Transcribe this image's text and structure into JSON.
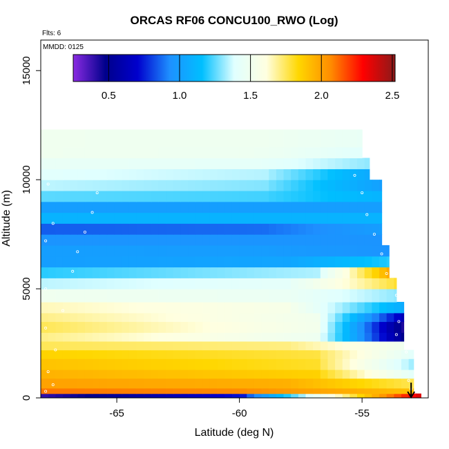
{
  "chart_data": {
    "type": "heatmap",
    "title": "ORCAS RF06 CONCU100_RWO (Log)",
    "flights_label": "Flts: 6",
    "date_label": "MMDD: 0125",
    "xlabel": "Latitude (deg N)",
    "ylabel": "Altitude (m)",
    "xlim": [
      -68.1,
      -52.3
    ],
    "ylim": [
      0,
      16400
    ],
    "x_ticks": [
      -65,
      -60,
      -55
    ],
    "x_tick_labels": [
      "-65",
      "-60",
      "-55"
    ],
    "y_ticks": [
      0,
      5000,
      10000,
      15000
    ],
    "y_tick_labels": [
      "0",
      "5000",
      "10000",
      "15000"
    ],
    "colorbar": {
      "range": [
        0.25,
        2.52
      ],
      "ticks": [
        0.5,
        1.0,
        1.5,
        2.0,
        2.5
      ],
      "tick_labels": [
        "0.5",
        "1.0",
        "1.5",
        "2.0",
        "2.5"
      ],
      "colors": [
        "#8a2be2",
        "#00008b",
        "#0000cd",
        "#1e90ff",
        "#00bfff",
        "#e0ffff",
        "#ffffe0",
        "#ffd700",
        "#ff8c00",
        "#ff0000",
        "#8b1a1a"
      ]
    },
    "layers": [
      {
        "alt": [
          0,
          200
        ],
        "left": 0.4,
        "right": 2.4,
        "mid": -60
      },
      {
        "alt": [
          200,
          450
        ],
        "left": 2.1,
        "right": 1.9,
        "mid": -60
      },
      {
        "alt": [
          450,
          900
        ],
        "left": 2.0,
        "right": 1.75,
        "mid": -58
      },
      {
        "alt": [
          900,
          1300
        ],
        "left": 1.95,
        "right": 1.4,
        "mid": -57
      },
      {
        "alt": [
          1300,
          1800
        ],
        "left": 1.9,
        "right": 1.3,
        "mid": -57
      },
      {
        "alt": [
          1800,
          2200
        ],
        "left": 1.85,
        "right": 1.4,
        "mid": -57
      },
      {
        "alt": [
          2200,
          2600
        ],
        "left": 1.75,
        "right": 1.5,
        "mid": -58
      },
      {
        "alt": [
          2600,
          3000
        ],
        "left": 1.7,
        "right": 0.45,
        "mid": -57
      },
      {
        "alt": [
          3000,
          3500
        ],
        "left": 1.75,
        "right": 0.4,
        "mid": -57
      },
      {
        "alt": [
          3500,
          3900
        ],
        "left": 1.7,
        "right": 0.6,
        "mid": -57
      },
      {
        "alt": [
          3900,
          4400
        ],
        "left": 1.65,
        "right": 1.05,
        "mid": -58
      },
      {
        "alt": [
          4400,
          5000
        ],
        "left": 1.5,
        "right": 1.3,
        "mid": -58
      },
      {
        "alt": [
          5000,
          5500
        ],
        "left": 1.35,
        "right": 1.8,
        "mid": -58
      },
      {
        "alt": [
          5500,
          6000
        ],
        "left": 1.2,
        "right": 2.0,
        "mid": -57
      },
      {
        "alt": [
          6000,
          6500
        ],
        "left": 1.0,
        "right": 1.2,
        "mid": -58
      },
      {
        "alt": [
          6500,
          7000
        ],
        "left": 1.0,
        "right": 0.95,
        "mid": -59
      },
      {
        "alt": [
          7000,
          7500
        ],
        "left": 0.95,
        "right": 0.95,
        "mid": -59
      },
      {
        "alt": [
          7500,
          8000
        ],
        "left": 0.85,
        "right": 1.0,
        "mid": -59
      },
      {
        "alt": [
          8000,
          8500
        ],
        "left": 1.1,
        "right": 1.1,
        "mid": -59
      },
      {
        "alt": [
          8500,
          9000
        ],
        "left": 1.0,
        "right": 1.0,
        "mid": -59
      },
      {
        "alt": [
          9000,
          9500
        ],
        "left": 1.25,
        "right": 1.1,
        "mid": -59
      },
      {
        "alt": [
          9500,
          10000
        ],
        "left": 1.35,
        "right": 1.0,
        "mid": -59
      },
      {
        "alt": [
          10000,
          10500
        ],
        "left": 1.4,
        "right": 1.05,
        "mid": -59
      },
      {
        "alt": [
          10500,
          11000
        ],
        "left": 1.45,
        "right": 1.3,
        "mid": -59
      },
      {
        "alt": [
          11000,
          11500
        ],
        "left": 1.5,
        "right": 1.4,
        "mid": -59
      },
      {
        "alt": [
          11500,
          12300
        ],
        "left": 1.5,
        "right": 1.45,
        "mid": -59
      }
    ],
    "right_edge": [
      {
        "alt": [
          0,
          300
        ],
        "lat": -52.6
      },
      {
        "alt": [
          300,
          2200
        ],
        "lat": -52.9
      },
      {
        "alt": [
          2200,
          4600
        ],
        "lat": -53.3
      },
      {
        "alt": [
          4600,
          5500
        ],
        "lat": -53.6
      },
      {
        "alt": [
          5500,
          7200
        ],
        "lat": -53.9
      },
      {
        "alt": [
          7200,
          9800
        ],
        "lat": -54.2
      },
      {
        "alt": [
          9800,
          10800
        ],
        "lat": -54.7
      },
      {
        "alt": [
          10800,
          12300
        ],
        "lat": -55.0
      }
    ],
    "flight_points": [
      [
        -67.9,
        300
      ],
      [
        -67.6,
        600
      ],
      [
        -67.8,
        1200
      ],
      [
        -67.5,
        2200
      ],
      [
        -67.9,
        3200
      ],
      [
        -67.2,
        4000
      ],
      [
        -67.9,
        5000
      ],
      [
        -66.8,
        5800
      ],
      [
        -66.6,
        6700
      ],
      [
        -67.9,
        7200
      ],
      [
        -66.3,
        7600
      ],
      [
        -67.6,
        8000
      ],
      [
        -66.0,
        8500
      ],
      [
        -65.8,
        9400
      ],
      [
        -67.8,
        9800
      ],
      [
        -55.3,
        10200
      ],
      [
        -55.0,
        9400
      ],
      [
        -54.8,
        8400
      ],
      [
        -54.5,
        7500
      ],
      [
        -54.2,
        6600
      ],
      [
        -54.0,
        5700
      ],
      [
        -53.6,
        4700
      ],
      [
        -53.5,
        3500
      ],
      [
        -53.6,
        2900
      ],
      [
        -53.2,
        2100
      ],
      [
        -53.1,
        800
      ],
      [
        -53.0,
        400
      ]
    ],
    "arrow": {
      "lat": -53.0,
      "alt_top": 700,
      "alt_bottom": 0
    }
  }
}
